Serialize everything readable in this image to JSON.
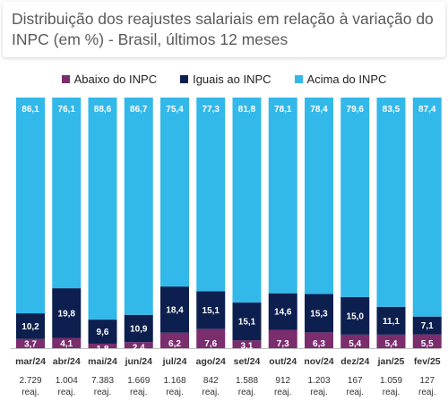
{
  "title": "Distribuição dos reajustes salariais em relação à variação do INPC (em %) - Brasil, últimos 12 meses",
  "legend": [
    {
      "label": "Abaixo do INPC",
      "color": "#7b2d6e"
    },
    {
      "label": "Iguais ao INPC",
      "color": "#0c1f4f"
    },
    {
      "label": "Acima do INPC",
      "color": "#33b8ea"
    }
  ],
  "chart_data": {
    "type": "bar",
    "stacked": true,
    "percent_stacked": true,
    "title": "Distribuição dos reajustes salariais em relação à variação do INPC (em %) - Brasil, últimos 12 meses",
    "categories": [
      "mar/24",
      "abr/24",
      "mai/24",
      "jun/24",
      "jul/24",
      "ago/24",
      "set/24",
      "out/24",
      "nov/24",
      "dez/24",
      "jan/25",
      "fev/25"
    ],
    "counts": [
      "2.729 reaj.",
      "1.004 reaj.",
      "7.383 reaj.",
      "1.669 reaj.",
      "1.168 reaj.",
      "842 reaj.",
      "1.588 reaj.",
      "912 reaj.",
      "1.203 reaj.",
      "167 reaj.",
      "1.059 reaj.",
      "127 reaj."
    ],
    "series": [
      {
        "name": "Abaixo do INPC",
        "color": "#7b2d6e",
        "values": [
          3.7,
          4.1,
          1.8,
          2.4,
          6.2,
          7.6,
          3.1,
          7.3,
          6.3,
          5.4,
          5.4,
          5.5
        ],
        "labels": [
          "3,7",
          "4,1",
          "1,8",
          "2,4",
          "6,2",
          "7,6",
          "3,1",
          "7,3",
          "6,3",
          "5,4",
          "5,4",
          "5,5"
        ]
      },
      {
        "name": "Iguais ao INPC",
        "color": "#0c1f4f",
        "values": [
          10.2,
          19.8,
          9.6,
          10.9,
          18.4,
          15.1,
          15.1,
          14.6,
          15.3,
          15.0,
          11.1,
          7.1
        ],
        "labels": [
          "10,2",
          "19,8",
          "9,6",
          "10,9",
          "18,4",
          "15,1",
          "15,1",
          "14,6",
          "15,3",
          "15,0",
          "11,1",
          "7,1"
        ]
      },
      {
        "name": "Acima do INPC",
        "color": "#33b8ea",
        "values": [
          86.1,
          76.1,
          88.6,
          86.7,
          75.4,
          77.3,
          81.8,
          78.1,
          78.4,
          79.6,
          83.5,
          87.4
        ],
        "labels": [
          "86,1",
          "76,1",
          "88,6",
          "86,7",
          "75,4",
          "77,3",
          "81,8",
          "78,1",
          "78,4",
          "79,6",
          "83,5",
          "87,4"
        ]
      }
    ],
    "ylim": [
      0,
      100
    ],
    "grid": false,
    "legend_position": "top"
  }
}
